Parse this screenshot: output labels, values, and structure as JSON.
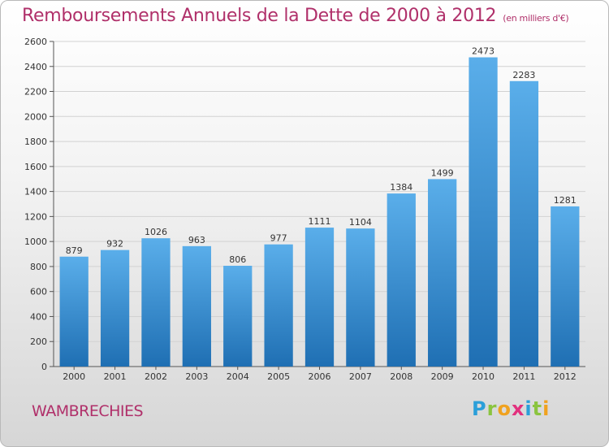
{
  "chart_data": {
    "type": "bar",
    "title": "Remboursements Annuels de la Dette de 2000 à 2012",
    "unit": "(en milliers d'€)",
    "categories": [
      "2000",
      "2001",
      "2002",
      "2003",
      "2004",
      "2005",
      "2006",
      "2007",
      "2008",
      "2009",
      "2010",
      "2011",
      "2012"
    ],
    "values": [
      879,
      932,
      1026,
      963,
      806,
      977,
      1111,
      1104,
      1384,
      1499,
      2473,
      2283,
      1281
    ],
    "ylim": [
      0,
      2600
    ],
    "yticks": [
      0,
      200,
      400,
      600,
      800,
      1000,
      1200,
      1400,
      1600,
      1800,
      2000,
      2200,
      2400,
      2600
    ],
    "grid": true,
    "bar_color": "#3d8fd4",
    "title_color": "#b0306a"
  },
  "commune": "WAMBRECHIES",
  "logo": {
    "text": "Proxiti"
  }
}
